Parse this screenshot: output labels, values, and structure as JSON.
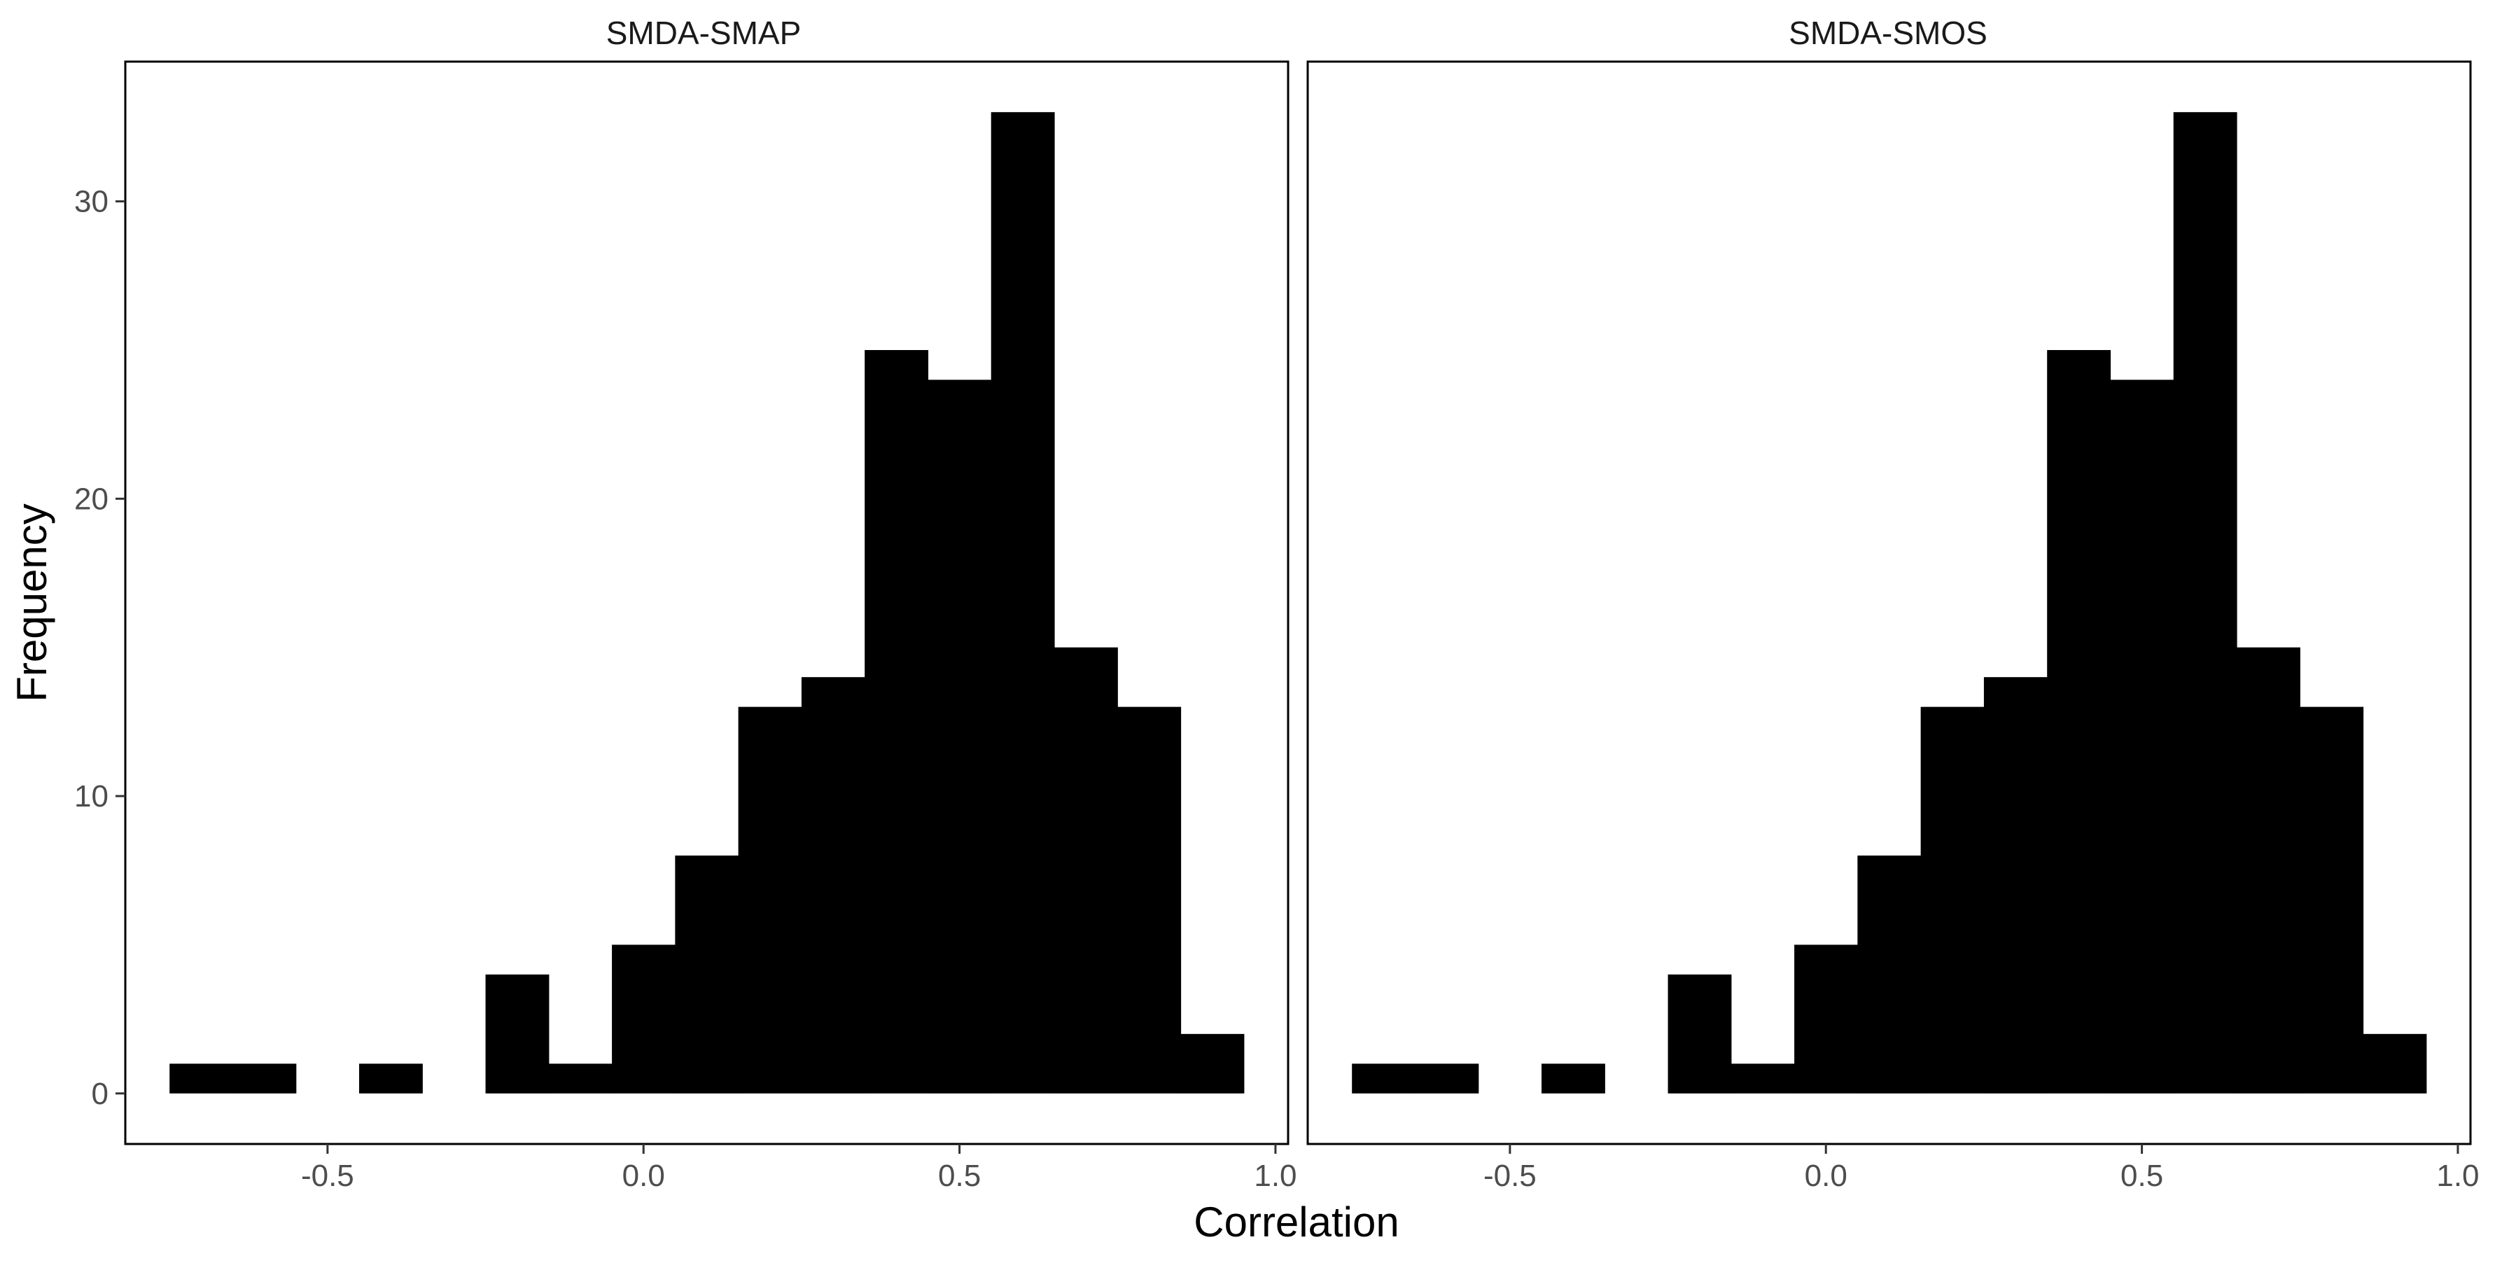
{
  "figure": {
    "ylabel": "Frequency",
    "xlabel": "Correlation"
  },
  "chart_data": [
    {
      "type": "bar",
      "panel_title": "SMDA-SMAP",
      "bin_width": 0.1,
      "bin_centers": [
        -0.7,
        -0.6,
        -0.5,
        -0.4,
        -0.3,
        -0.2,
        -0.1,
        0.0,
        0.1,
        0.2,
        0.3,
        0.4,
        0.5,
        0.6,
        0.7,
        0.8,
        0.9
      ],
      "values": [
        1,
        1,
        0,
        1,
        0,
        4,
        1,
        5,
        8,
        13,
        14,
        25,
        24,
        33,
        15,
        13,
        2
      ],
      "xlim": [
        -0.82,
        1.02
      ],
      "ylim": [
        -1.7,
        34.7
      ],
      "x_ticks": [
        "-0.5",
        "0.0",
        "0.5",
        "1.0"
      ],
      "y_ticks": [
        "0",
        "10",
        "20",
        "30"
      ],
      "grid": false,
      "bar_color": "#000000"
    },
    {
      "type": "bar",
      "panel_title": "SMDA-SMOS",
      "bin_width": 0.1,
      "bin_centers": [
        -0.7,
        -0.6,
        -0.5,
        -0.4,
        -0.3,
        -0.2,
        -0.1,
        0.0,
        0.1,
        0.2,
        0.3,
        0.4,
        0.5,
        0.6,
        0.7,
        0.8,
        0.9
      ],
      "values": [
        1,
        1,
        0,
        1,
        0,
        4,
        1,
        5,
        8,
        13,
        14,
        25,
        24,
        33,
        15,
        13,
        2
      ],
      "xlim": [
        -0.82,
        1.02
      ],
      "ylim": [
        -1.7,
        34.7
      ],
      "x_ticks": [
        "-0.5",
        "0.0",
        "0.5",
        "1.0"
      ],
      "y_ticks": [
        "0",
        "10",
        "20",
        "30"
      ],
      "grid": false,
      "bar_color": "#000000"
    }
  ]
}
